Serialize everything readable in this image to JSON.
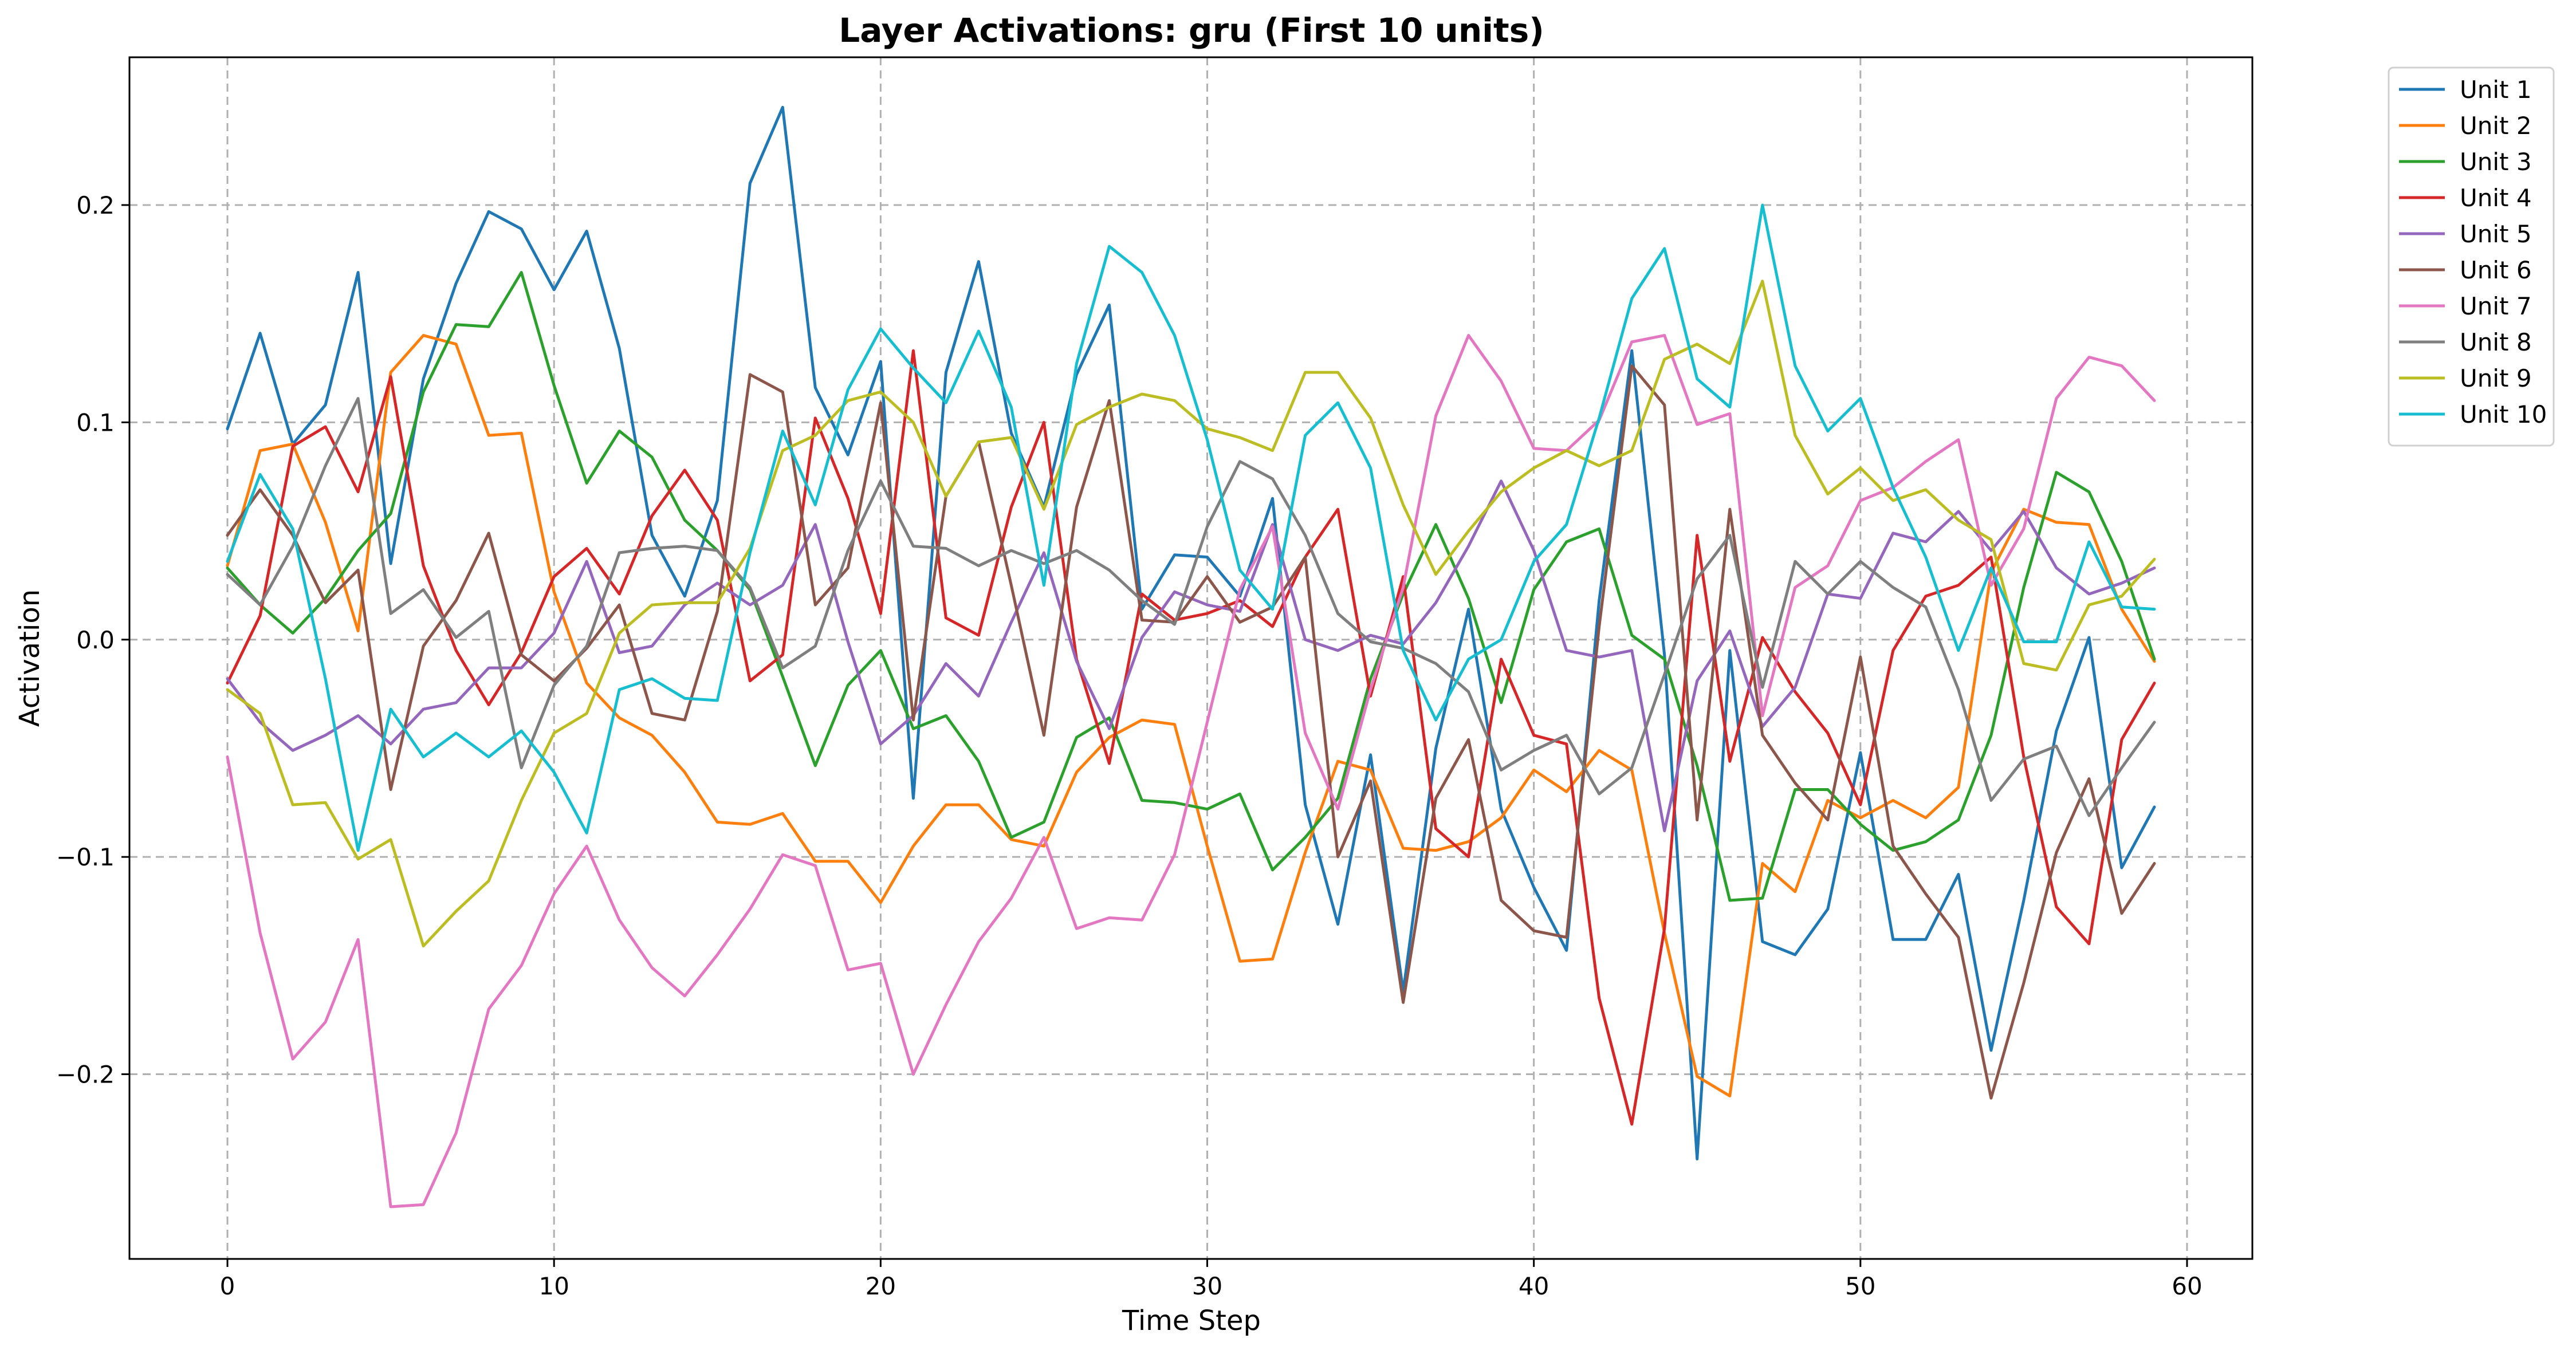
{
  "chart_data": {
    "type": "line",
    "title": "Layer Activations: gru (First 10 units)",
    "xlabel": "Time Step",
    "ylabel": "Activation",
    "xlim": [
      -3,
      62
    ],
    "ylim": [
      -0.285,
      0.268
    ],
    "xticks": [
      0,
      10,
      20,
      30,
      40,
      50,
      60
    ],
    "yticks": [
      -0.2,
      -0.1,
      0.0,
      0.1,
      0.2
    ],
    "ytick_labels": [
      "−0.2",
      "−0.1",
      "0.0",
      "0.1",
      "0.2"
    ],
    "grid": true,
    "legend_position": "outside-top-right",
    "series": [
      {
        "name": "Unit 1",
        "color": "#1f77b4",
        "values": [
          0.097,
          0.141,
          0.09,
          0.108,
          0.169,
          0.035,
          0.12,
          0.164,
          0.197,
          0.189,
          0.161,
          0.188,
          0.134,
          0.048,
          0.02,
          0.064,
          0.21,
          0.245,
          0.116,
          0.085,
          0.128,
          -0.073,
          0.123,
          0.174,
          0.095,
          0.061,
          0.122,
          0.154,
          0.014,
          0.039,
          0.038,
          0.02,
          0.065,
          -0.076,
          -0.131,
          -0.053,
          -0.162,
          -0.05,
          0.014,
          -0.078,
          -0.114,
          -0.143,
          0.018,
          0.133,
          -0.007,
          -0.239,
          -0.005,
          -0.139,
          -0.145,
          -0.124,
          -0.052,
          -0.138,
          -0.138,
          -0.108,
          -0.189,
          -0.12,
          -0.042,
          0.001,
          -0.105,
          -0.077
        ]
      },
      {
        "name": "Unit 2",
        "color": "#ff7f0e",
        "values": [
          0.034,
          0.087,
          0.09,
          0.054,
          0.004,
          0.123,
          0.14,
          0.136,
          0.094,
          0.095,
          0.022,
          -0.02,
          -0.036,
          -0.044,
          -0.061,
          -0.084,
          -0.085,
          -0.08,
          -0.102,
          -0.102,
          -0.121,
          -0.095,
          -0.076,
          -0.076,
          -0.092,
          -0.095,
          -0.061,
          -0.045,
          -0.037,
          -0.039,
          -0.095,
          -0.148,
          -0.147,
          -0.098,
          -0.056,
          -0.06,
          -0.096,
          -0.097,
          -0.093,
          -0.082,
          -0.06,
          -0.07,
          -0.051,
          -0.06,
          -0.135,
          -0.201,
          -0.21,
          -0.103,
          -0.116,
          -0.074,
          -0.082,
          -0.074,
          -0.082,
          -0.068,
          0.031,
          0.06,
          0.054,
          0.053,
          0.014,
          -0.01
        ]
      },
      {
        "name": "Unit 3",
        "color": "#2ca02c",
        "values": [
          0.033,
          0.016,
          0.003,
          0.019,
          0.041,
          0.058,
          0.114,
          0.145,
          0.144,
          0.169,
          0.117,
          0.072,
          0.096,
          0.084,
          0.055,
          0.041,
          0.023,
          -0.017,
          -0.058,
          -0.021,
          -0.005,
          -0.041,
          -0.035,
          -0.056,
          -0.091,
          -0.084,
          -0.045,
          -0.036,
          -0.074,
          -0.075,
          -0.078,
          -0.071,
          -0.106,
          -0.091,
          -0.073,
          -0.018,
          0.021,
          0.053,
          0.019,
          -0.029,
          0.023,
          0.045,
          0.051,
          0.002,
          -0.009,
          -0.058,
          -0.12,
          -0.119,
          -0.069,
          -0.069,
          -0.085,
          -0.097,
          -0.093,
          -0.083,
          -0.044,
          0.024,
          0.077,
          0.068,
          0.036,
          -0.009
        ]
      },
      {
        "name": "Unit 4",
        "color": "#d62728",
        "values": [
          -0.02,
          0.011,
          0.089,
          0.098,
          0.068,
          0.121,
          0.034,
          -0.005,
          -0.03,
          -0.006,
          0.029,
          0.042,
          0.021,
          0.057,
          0.078,
          0.055,
          -0.019,
          -0.007,
          0.102,
          0.065,
          0.012,
          0.133,
          0.01,
          0.002,
          0.061,
          0.1,
          -0.009,
          -0.057,
          0.021,
          0.009,
          0.012,
          0.018,
          0.006,
          0.038,
          0.06,
          -0.026,
          0.029,
          -0.087,
          -0.1,
          -0.009,
          -0.044,
          -0.048,
          -0.165,
          -0.223,
          -0.133,
          0.048,
          -0.056,
          0.001,
          -0.024,
          -0.043,
          -0.076,
          -0.005,
          0.02,
          0.025,
          0.038,
          -0.054,
          -0.123,
          -0.14,
          -0.046,
          -0.02
        ]
      },
      {
        "name": "Unit 5",
        "color": "#9467bd",
        "values": [
          -0.018,
          -0.038,
          -0.051,
          -0.044,
          -0.035,
          -0.048,
          -0.032,
          -0.029,
          -0.013,
          -0.013,
          0.003,
          0.036,
          -0.006,
          -0.003,
          0.016,
          0.026,
          0.016,
          0.025,
          0.053,
          -0.001,
          -0.048,
          -0.035,
          -0.011,
          -0.026,
          0.008,
          0.04,
          -0.01,
          -0.041,
          0.001,
          0.022,
          0.016,
          0.013,
          0.053,
          0.0,
          -0.005,
          0.002,
          -0.002,
          0.017,
          0.043,
          0.073,
          0.041,
          -0.005,
          -0.008,
          -0.005,
          -0.088,
          -0.019,
          0.004,
          -0.04,
          -0.022,
          0.021,
          0.019,
          0.049,
          0.045,
          0.059,
          0.041,
          0.059,
          0.033,
          0.021,
          0.026,
          0.033
        ]
      },
      {
        "name": "Unit 6",
        "color": "#8c564b",
        "values": [
          0.048,
          0.069,
          0.048,
          0.017,
          0.032,
          -0.069,
          -0.003,
          0.018,
          0.049,
          -0.007,
          -0.019,
          -0.004,
          0.016,
          -0.034,
          -0.037,
          0.013,
          0.122,
          0.114,
          0.016,
          0.033,
          0.109,
          -0.037,
          0.066,
          0.091,
          0.025,
          -0.044,
          0.061,
          0.11,
          0.009,
          0.008,
          0.029,
          0.008,
          0.015,
          0.038,
          -0.1,
          -0.065,
          -0.167,
          -0.073,
          -0.046,
          -0.12,
          -0.134,
          -0.137,
          0.006,
          0.126,
          0.108,
          -0.083,
          0.06,
          -0.044,
          -0.066,
          -0.083,
          -0.008,
          -0.095,
          -0.117,
          -0.137,
          -0.211,
          -0.158,
          -0.098,
          -0.064,
          -0.126,
          -0.103
        ]
      },
      {
        "name": "Unit 7",
        "color": "#e377c2",
        "values": [
          -0.054,
          -0.135,
          -0.193,
          -0.176,
          -0.138,
          -0.261,
          -0.26,
          -0.227,
          -0.17,
          -0.15,
          -0.117,
          -0.095,
          -0.129,
          -0.151,
          -0.164,
          -0.145,
          -0.124,
          -0.099,
          -0.104,
          -0.152,
          -0.149,
          -0.2,
          -0.168,
          -0.139,
          -0.119,
          -0.091,
          -0.133,
          -0.128,
          -0.129,
          -0.099,
          -0.038,
          0.023,
          0.052,
          -0.043,
          -0.078,
          -0.023,
          0.024,
          0.103,
          0.14,
          0.119,
          0.088,
          0.087,
          0.101,
          0.137,
          0.14,
          0.099,
          0.104,
          -0.035,
          0.024,
          0.034,
          0.064,
          0.07,
          0.082,
          0.092,
          0.025,
          0.051,
          0.111,
          0.13,
          0.126,
          0.11
        ]
      },
      {
        "name": "Unit 8",
        "color": "#7f7f7f",
        "values": [
          0.03,
          0.016,
          0.043,
          0.08,
          0.111,
          0.012,
          0.023,
          0.001,
          0.013,
          -0.059,
          -0.021,
          -0.003,
          0.04,
          0.042,
          0.043,
          0.041,
          0.024,
          -0.013,
          -0.003,
          0.041,
          0.073,
          0.043,
          0.042,
          0.034,
          0.041,
          0.035,
          0.041,
          0.032,
          0.018,
          0.007,
          0.052,
          0.082,
          0.074,
          0.048,
          0.012,
          -0.001,
          -0.004,
          -0.011,
          -0.024,
          -0.06,
          -0.051,
          -0.044,
          -0.071,
          -0.059,
          -0.016,
          0.028,
          0.048,
          -0.022,
          0.036,
          0.021,
          0.036,
          0.024,
          0.015,
          -0.023,
          -0.074,
          -0.055,
          -0.049,
          -0.081,
          -0.059,
          -0.038
        ]
      },
      {
        "name": "Unit 9",
        "color": "#bcbd22",
        "values": [
          -0.023,
          -0.034,
          -0.076,
          -0.075,
          -0.101,
          -0.092,
          -0.141,
          -0.125,
          -0.111,
          -0.074,
          -0.043,
          -0.034,
          0.003,
          0.016,
          0.017,
          0.017,
          0.042,
          0.087,
          0.094,
          0.11,
          0.114,
          0.1,
          0.066,
          0.091,
          0.093,
          0.06,
          0.099,
          0.107,
          0.113,
          0.11,
          0.097,
          0.093,
          0.087,
          0.123,
          0.123,
          0.102,
          0.062,
          0.03,
          0.05,
          0.068,
          0.079,
          0.087,
          0.08,
          0.087,
          0.129,
          0.136,
          0.127,
          0.165,
          0.094,
          0.067,
          0.079,
          0.064,
          0.069,
          0.055,
          0.046,
          -0.011,
          -0.014,
          0.016,
          0.02,
          0.037
        ]
      },
      {
        "name": "Unit 10",
        "color": "#17becf",
        "values": [
          0.036,
          0.076,
          0.051,
          -0.018,
          -0.097,
          -0.032,
          -0.054,
          -0.043,
          -0.054,
          -0.042,
          -0.061,
          -0.089,
          -0.023,
          -0.018,
          -0.027,
          -0.028,
          0.04,
          0.096,
          0.062,
          0.115,
          0.143,
          0.125,
          0.109,
          0.142,
          0.107,
          0.025,
          0.127,
          0.181,
          0.169,
          0.14,
          0.092,
          0.032,
          0.014,
          0.094,
          0.109,
          0.079,
          -0.005,
          -0.037,
          -0.009,
          0.0,
          0.036,
          0.053,
          0.102,
          0.157,
          0.18,
          0.12,
          0.107,
          0.2,
          0.126,
          0.096,
          0.111,
          0.07,
          0.038,
          -0.005,
          0.033,
          -0.001,
          -0.001,
          0.045,
          0.015,
          0.014
        ]
      }
    ]
  }
}
